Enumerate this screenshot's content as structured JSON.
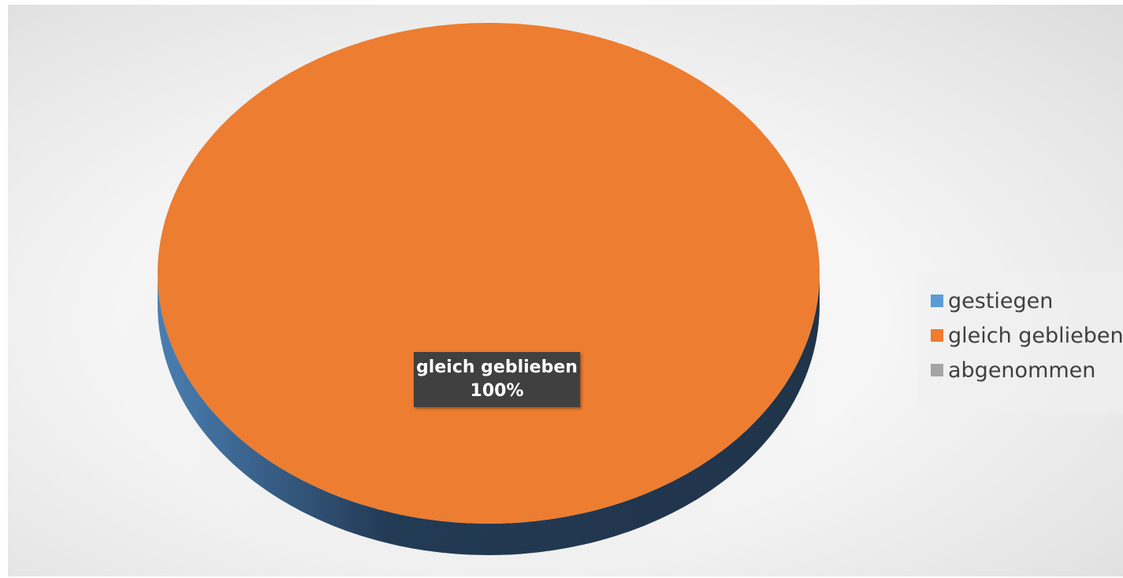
{
  "chart_data": {
    "type": "pie",
    "style": "3d",
    "categories": [
      "gestiegen",
      "gleich geblieben",
      "abgenommen"
    ],
    "values": [
      0,
      100,
      0
    ],
    "colors": [
      "#5b9bd5",
      "#ed7d31",
      "#a5a5a5"
    ],
    "legend_position": "right",
    "data_labels": [
      {
        "category": "gleich geblieben",
        "percent": "100%"
      }
    ]
  }
}
